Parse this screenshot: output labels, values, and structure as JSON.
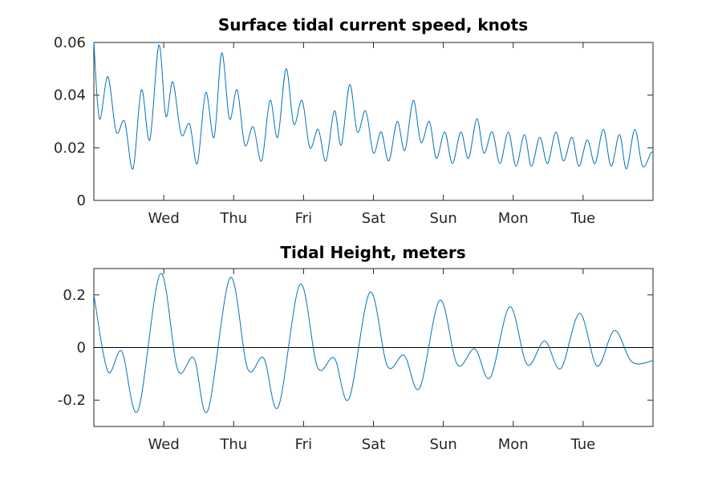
{
  "chart_data": [
    {
      "type": "line",
      "title": "Surface tidal current speed, knots",
      "xlabel": "",
      "ylabel": "",
      "x_tick_labels": [
        "Wed",
        "Thu",
        "Fri",
        "Sat",
        "Sun",
        "Mon",
        "Tue"
      ],
      "x_tick_positions_days": [
        1,
        2,
        3,
        4,
        5,
        6,
        7
      ],
      "xlim_days": [
        0,
        8
      ],
      "ylim": [
        0,
        0.06
      ],
      "y_ticks": [
        0,
        0.02,
        0.04,
        0.06
      ],
      "y_tick_labels": [
        "0",
        "0.02",
        "0.04",
        "0.06"
      ],
      "grid": false,
      "color": "#0072BD",
      "series": [
        {
          "x_days": [
            0.0,
            0.08,
            0.2,
            0.32,
            0.44,
            0.56,
            0.68,
            0.8,
            0.93,
            1.03,
            1.13,
            1.25,
            1.37,
            1.48,
            1.6,
            1.72,
            1.83,
            1.94,
            2.05,
            2.16,
            2.28,
            2.4,
            2.52,
            2.63,
            2.75,
            2.86,
            2.98,
            3.09,
            3.21,
            3.32,
            3.44,
            3.54,
            3.66,
            3.77,
            3.89,
            4.0,
            4.11,
            4.22,
            4.34,
            4.45,
            4.57,
            4.68,
            4.8,
            4.9,
            5.02,
            5.13,
            5.25,
            5.36,
            5.48,
            5.58,
            5.7,
            5.81,
            5.93,
            6.04,
            6.16,
            6.26,
            6.38,
            6.49,
            6.61,
            6.72,
            6.84,
            6.94,
            7.06,
            7.17,
            7.29,
            7.4,
            7.52,
            7.62,
            7.74,
            7.85,
            7.97,
            8.0
          ],
          "values": [
            0.06,
            0.031,
            0.047,
            0.026,
            0.03,
            0.012,
            0.042,
            0.023,
            0.059,
            0.032,
            0.045,
            0.025,
            0.029,
            0.014,
            0.041,
            0.024,
            0.056,
            0.031,
            0.042,
            0.021,
            0.028,
            0.015,
            0.038,
            0.024,
            0.05,
            0.029,
            0.038,
            0.02,
            0.027,
            0.015,
            0.034,
            0.021,
            0.044,
            0.026,
            0.034,
            0.018,
            0.026,
            0.015,
            0.03,
            0.019,
            0.038,
            0.022,
            0.03,
            0.016,
            0.026,
            0.014,
            0.026,
            0.016,
            0.031,
            0.018,
            0.026,
            0.014,
            0.026,
            0.013,
            0.025,
            0.013,
            0.024,
            0.014,
            0.026,
            0.015,
            0.024,
            0.013,
            0.023,
            0.014,
            0.027,
            0.013,
            0.025,
            0.012,
            0.027,
            0.013,
            0.018,
            0.018
          ]
        }
      ]
    },
    {
      "type": "line",
      "title": "Tidal Height, meters",
      "xlabel": "",
      "ylabel": "",
      "x_tick_labels": [
        "Wed",
        "Thu",
        "Fri",
        "Sat",
        "Sun",
        "Mon",
        "Tue"
      ],
      "x_tick_positions_days": [
        1,
        2,
        3,
        4,
        5,
        6,
        7
      ],
      "xlim_days": [
        0,
        8
      ],
      "ylim": [
        -0.3,
        0.3
      ],
      "y_ticks": [
        -0.2,
        0,
        0.2
      ],
      "y_tick_labels": [
        "-0.2",
        "0",
        "0.2"
      ],
      "grid": false,
      "zero_line": true,
      "color": "#0072BD",
      "series": [
        {
          "x_days": [
            0.0,
            0.2,
            0.4,
            0.63,
            0.95,
            1.2,
            1.43,
            1.63,
            1.95,
            2.2,
            2.43,
            2.64,
            2.95,
            3.2,
            3.44,
            3.65,
            3.95,
            4.2,
            4.44,
            4.66,
            4.95,
            5.2,
            5.45,
            5.67,
            5.95,
            6.2,
            6.45,
            6.68,
            6.95,
            7.2,
            7.45,
            7.7,
            8.0
          ],
          "values": [
            0.2,
            -0.09,
            -0.015,
            -0.24,
            0.28,
            -0.085,
            -0.04,
            -0.24,
            0.265,
            -0.08,
            -0.04,
            -0.225,
            0.24,
            -0.075,
            -0.04,
            -0.195,
            0.21,
            -0.07,
            -0.03,
            -0.155,
            0.18,
            -0.065,
            -0.005,
            -0.115,
            0.155,
            -0.065,
            0.025,
            -0.08,
            0.13,
            -0.07,
            0.065,
            -0.055,
            -0.05
          ]
        }
      ]
    }
  ]
}
